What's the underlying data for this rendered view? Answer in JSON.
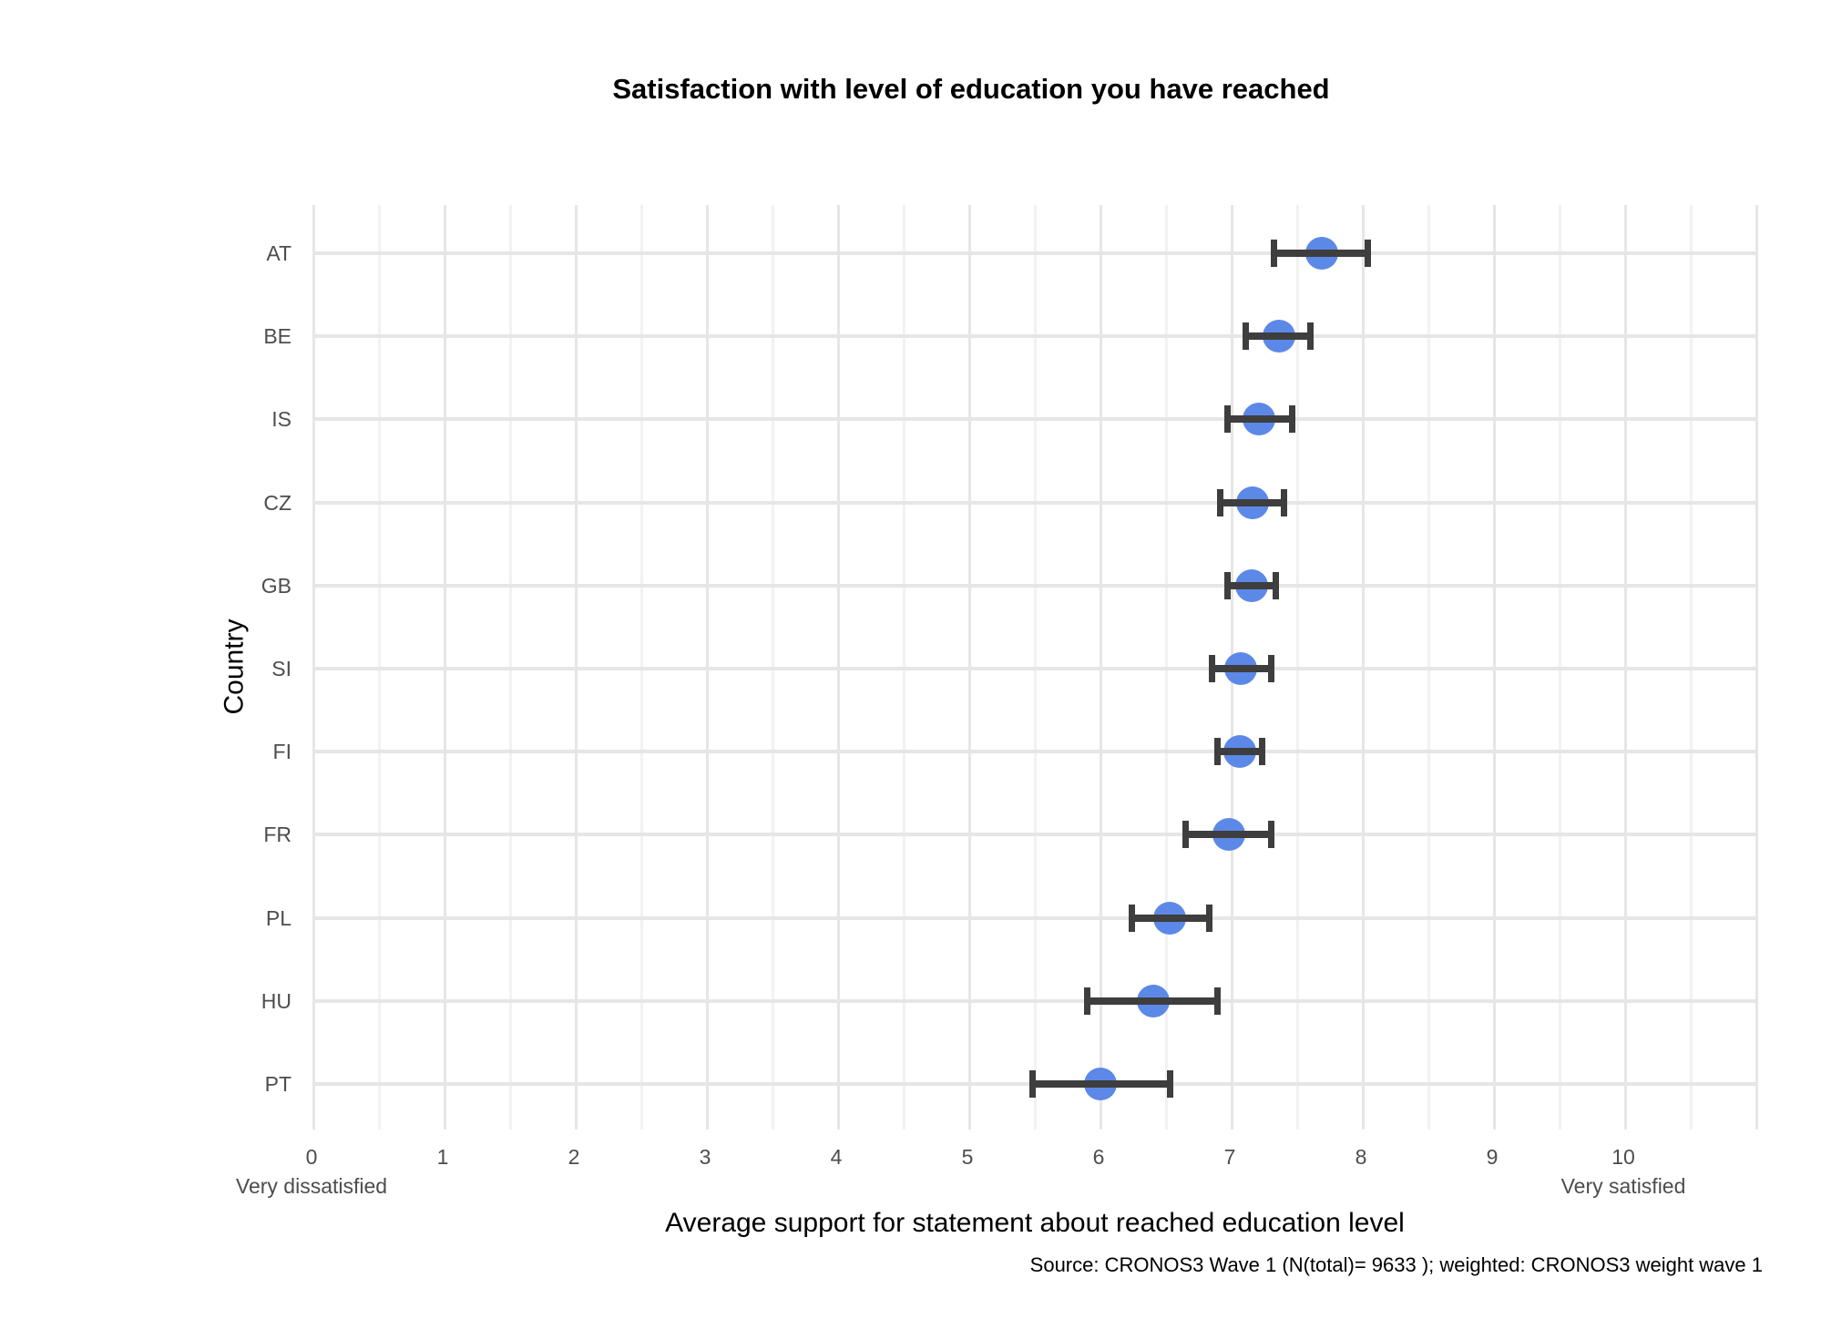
{
  "title": "Satisfaction with level of education you have reached",
  "source": "Source: CRONOS3 Wave 1 (N(total)= 9633 ); weighted: CRONOS3 weight wave 1",
  "chart_data": {
    "type": "scatter",
    "subtype": "dot-plot-with-error-bars",
    "title": "Satisfaction with level of education you have reached",
    "xlabel": "Average support for statement about reached education level",
    "ylabel": "Country",
    "xlim": [
      0,
      11
    ],
    "x_ticks": [
      0,
      1,
      2,
      3,
      4,
      5,
      6,
      7,
      8,
      9,
      10
    ],
    "x_min_label": "Very dissatisfied",
    "x_max_label": "Very satisfied",
    "grid": true,
    "legend": "none",
    "categories": [
      "AT",
      "BE",
      "IS",
      "CZ",
      "GB",
      "SI",
      "FI",
      "FR",
      "PL",
      "HU",
      "PT"
    ],
    "series": [
      {
        "name": "mean",
        "values": [
          7.69,
          7.36,
          7.21,
          7.16,
          7.15,
          7.07,
          7.06,
          6.98,
          6.53,
          6.4,
          6.0
        ]
      },
      {
        "name": "ci_low",
        "values": [
          7.32,
          7.11,
          6.97,
          6.91,
          6.97,
          6.85,
          6.89,
          6.65,
          6.24,
          5.9,
          5.48
        ]
      },
      {
        "name": "ci_high",
        "values": [
          8.04,
          7.6,
          7.46,
          7.4,
          7.34,
          7.3,
          7.23,
          7.3,
          6.83,
          6.89,
          6.53
        ]
      }
    ],
    "colors": {
      "point": "#5C88E8",
      "errorbar": "#3E3E3E",
      "grid_major": "#E6E6E6",
      "grid_minor": "#F2F2F2",
      "tick_label": "#4D4D4D"
    }
  }
}
